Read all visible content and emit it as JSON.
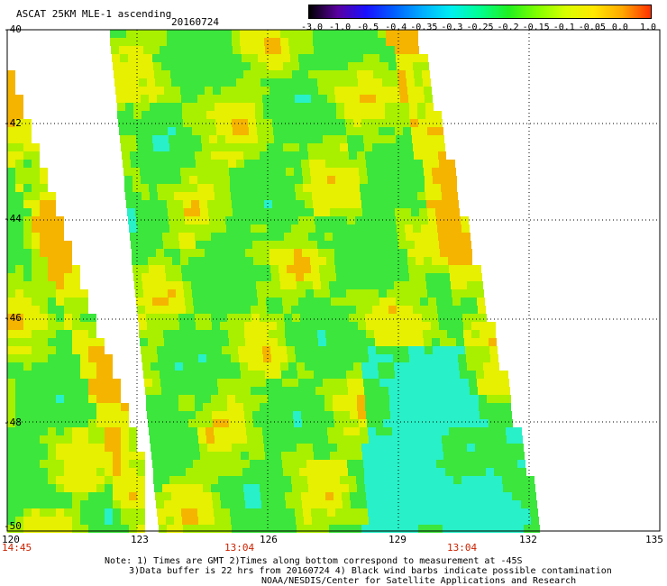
{
  "header": {
    "title": "ASCAT 25KM MLE-1 ascending",
    "date": "20160724"
  },
  "colorbar": {
    "labels": [
      "-3.0",
      "-1.0",
      "-0.5",
      "-0.4",
      "-0.35",
      "-0.3",
      "-0.25",
      "-0.2",
      "-0.15",
      "-0.1",
      "-0.05",
      "0.0",
      "1.0"
    ],
    "colors": [
      "#000000",
      "#5a00a0",
      "#1a10ff",
      "#0060ff",
      "#00b0ff",
      "#00f0f0",
      "#00ff90",
      "#20f020",
      "#80ff00",
      "#d8ff00",
      "#ffe800",
      "#ffa800",
      "#ff3000"
    ]
  },
  "map": {
    "lon_labels": [
      "120",
      "123",
      "126",
      "129",
      "132",
      "135"
    ],
    "lat_labels": [
      "-40",
      "-42",
      "-44",
      "-46",
      "-48",
      "-50"
    ],
    "time_labels": [
      "14:45",
      "13:04",
      "13:04"
    ],
    "colors": {
      "green": "#3ce63c",
      "yellow_green": "#a8f000",
      "yellow": "#e6f000",
      "orange": "#f5b400",
      "cyan": "#28f0c8",
      "time_label": "#cc2200"
    }
  },
  "notes": {
    "line1": "Note: 1) Times are GMT 2)Times along bottom correspond to measurement at -45S",
    "line2": "3)Data buffer is 22 hrs from 20160724 4) Black wind barbs indicate possible contamination",
    "line3": "NOAA/NESDIS/Center for Satellite Applications and Research"
  }
}
